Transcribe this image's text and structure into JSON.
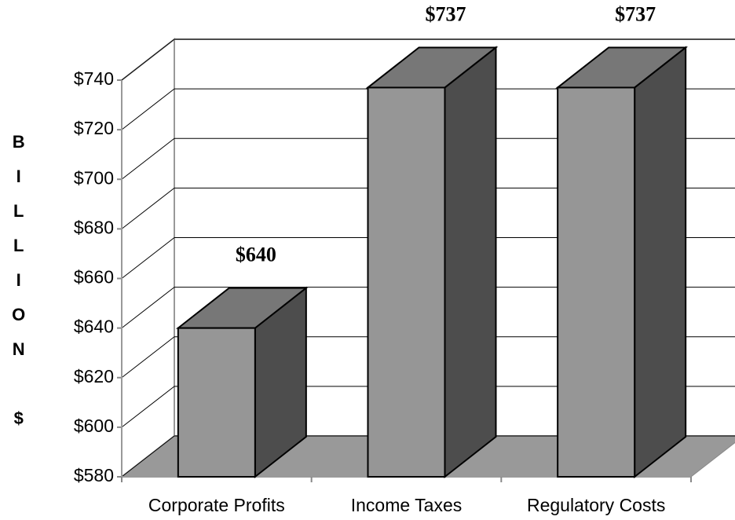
{
  "chart_data": {
    "type": "bar3d",
    "y_axis_label": "BILLION $",
    "categories": [
      "Corporate Profits",
      "Income Taxes",
      "Regulatory Costs"
    ],
    "values": [
      640,
      737,
      737
    ],
    "value_labels": [
      "$640",
      "$737",
      "$737"
    ],
    "color": "#969696",
    "ylim": [
      580,
      740
    ],
    "yticks": [
      {
        "value": 580,
        "label": "$580"
      },
      {
        "value": 600,
        "label": "$600"
      },
      {
        "value": 620,
        "label": "$620"
      },
      {
        "value": 640,
        "label": "$640"
      },
      {
        "value": 660,
        "label": "$660"
      },
      {
        "value": 680,
        "label": "$680"
      },
      {
        "value": 700,
        "label": "$700"
      },
      {
        "value": 720,
        "label": "$720"
      },
      {
        "value": 740,
        "label": "$740"
      }
    ],
    "grid": true
  }
}
